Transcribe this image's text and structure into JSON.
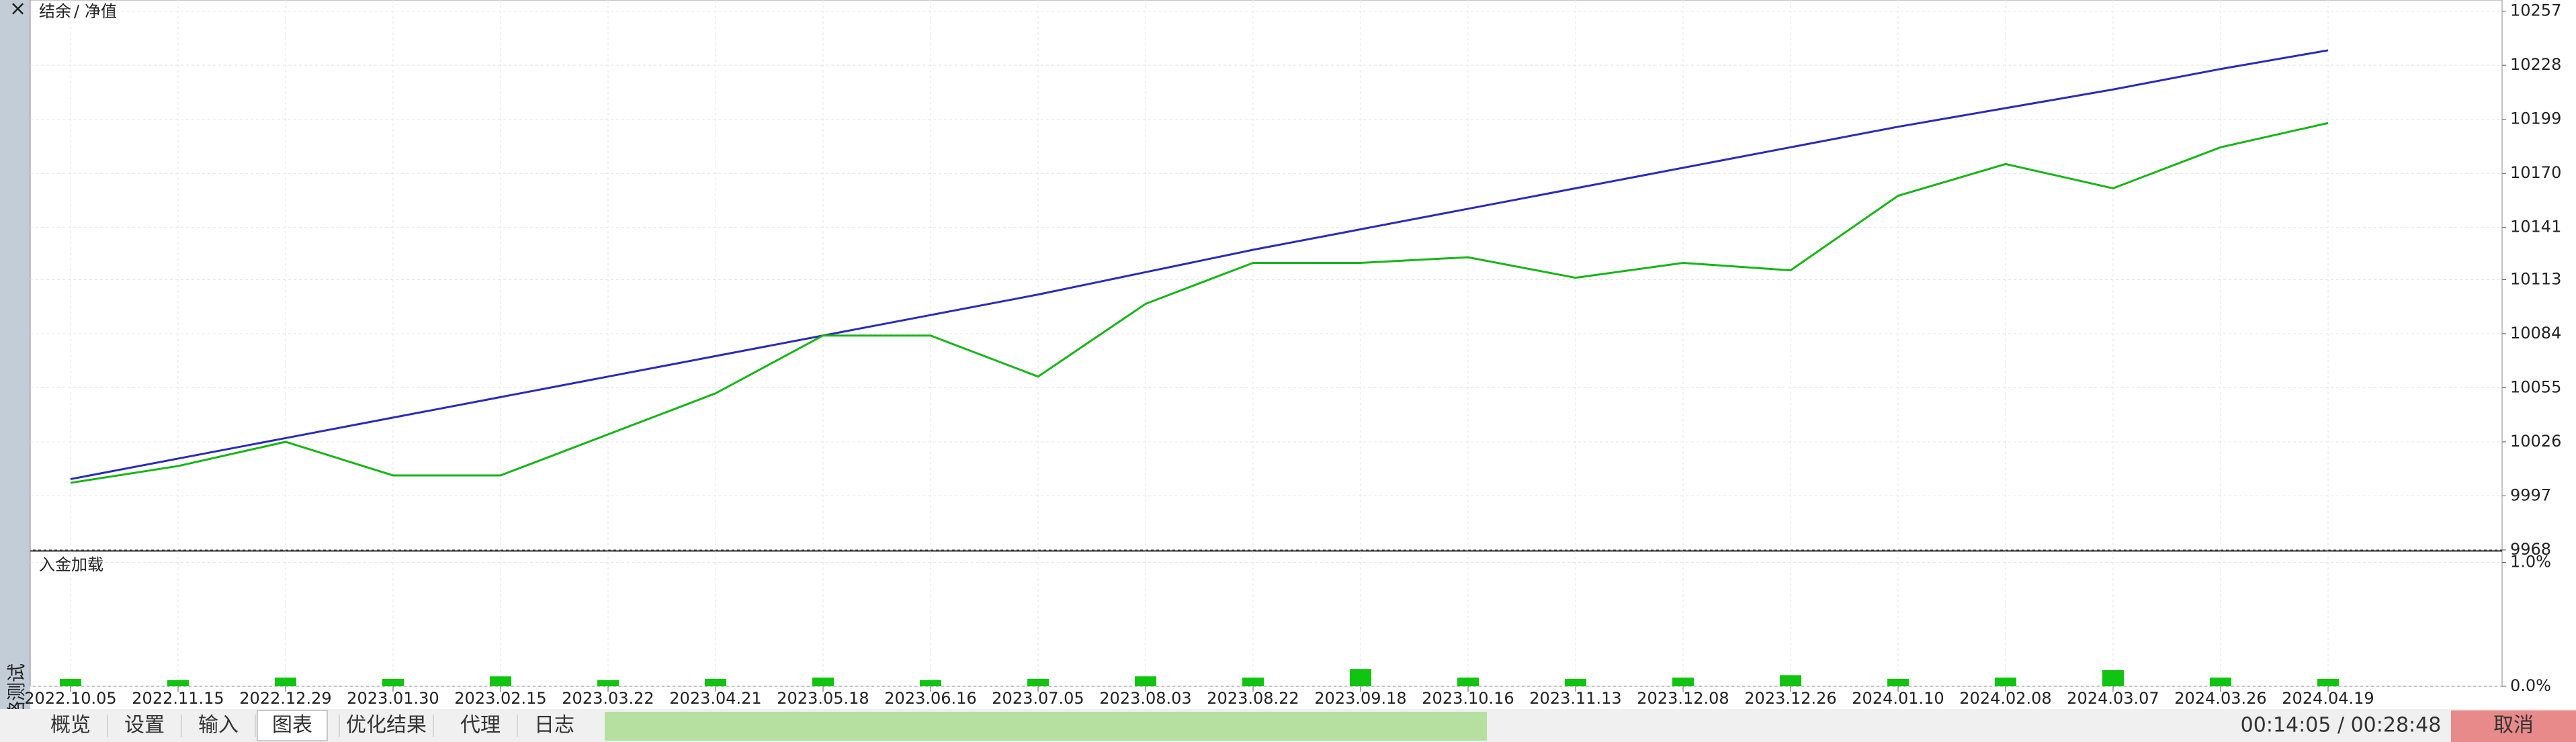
{
  "sidebar": {
    "close": "×",
    "title": "策略测试"
  },
  "legend_separator": "/",
  "tabs": [
    "概览",
    "设置",
    "输入",
    "图表",
    "优化结果",
    "代理",
    "日志"
  ],
  "timer": "00:14:05 / 00:28:48",
  "cancel": "取消",
  "chart_data": [
    {
      "type": "line",
      "categories": [
        "2022.10.05",
        "2022.11.15",
        "2022.12.29",
        "2023.01.30",
        "2023.02.15",
        "2023.03.22",
        "2023.04.21",
        "2023.05.18",
        "2023.06.16",
        "2023.07.05",
        "2023.08.03",
        "2023.08.22",
        "2023.09.18",
        "2023.10.16",
        "2023.11.13",
        "2023.12.08",
        "2023.12.26",
        "2024.01.10",
        "2024.02.08",
        "2024.03.07",
        "2024.03.26",
        "2024.04.19"
      ],
      "series": [
        {
          "name": "结余",
          "color": "#2b2bb8",
          "values": [
            10006,
            10017,
            10028,
            10039,
            10050,
            10061,
            10072,
            10083,
            10094,
            10105,
            10117,
            10129,
            10140,
            10151,
            10162,
            10173,
            10184,
            10195,
            10205,
            10215,
            10226,
            10236
          ]
        },
        {
          "name": "净值",
          "color": "#17b517",
          "values": [
            10004,
            10013,
            10026,
            10008,
            10008,
            10030,
            10052,
            10083,
            10083,
            10061,
            10100,
            10122,
            10122,
            10125,
            10114,
            10122,
            10118,
            10158,
            10175,
            10162,
            10184,
            10197
          ]
        }
      ],
      "ylim": [
        9968,
        10263
      ],
      "yticks": [
        9968,
        9997,
        10026,
        10055,
        10084,
        10113,
        10141,
        10170,
        10199,
        10228,
        10257
      ],
      "grid": true
    },
    {
      "type": "bar",
      "title": "入金加载",
      "color": "#11c411",
      "values": [
        0.06,
        0.05,
        0.07,
        0.06,
        0.08,
        0.05,
        0.06,
        0.07,
        0.05,
        0.06,
        0.08,
        0.07,
        0.14,
        0.07,
        0.06,
        0.07,
        0.09,
        0.06,
        0.07,
        0.13,
        0.07,
        0.06
      ],
      "ylim": [
        0,
        1.09
      ],
      "yticks": [
        {
          "value": 0,
          "label": "0.0%"
        },
        {
          "value": 1,
          "label": "1.0%"
        }
      ],
      "grid": true
    }
  ]
}
